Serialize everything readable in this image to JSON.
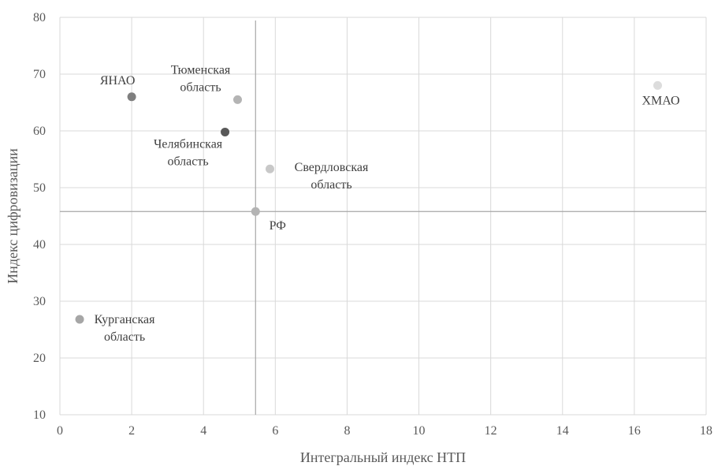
{
  "chart_data": {
    "type": "scatter",
    "title": "",
    "xlabel": "Интегральный индекс НТП",
    "ylabel": "Индекс цифровизации",
    "xlim": [
      0,
      18
    ],
    "ylim": [
      10,
      80
    ],
    "x_ticks": [
      0,
      2,
      4,
      6,
      8,
      10,
      12,
      14,
      16,
      18
    ],
    "y_ticks": [
      10,
      20,
      30,
      40,
      50,
      60,
      70,
      80
    ],
    "grid": true,
    "legend": "none",
    "reference_lines": {
      "x": 5.45,
      "y": 45.8
    },
    "points": [
      {
        "label": [
          "ЯНАО"
        ],
        "x": 2.0,
        "y": 66.0,
        "color": "#7f7f7f"
      },
      {
        "label": [
          "Тюменская",
          "область"
        ],
        "x": 4.95,
        "y": 65.5,
        "color": "#b4b4b4"
      },
      {
        "label": [
          "Челябинская",
          "область"
        ],
        "x": 4.6,
        "y": 59.8,
        "color": "#595959"
      },
      {
        "label": [
          "Свердловская",
          "область"
        ],
        "x": 5.85,
        "y": 53.3,
        "color": "#c8c8c8"
      },
      {
        "label": [
          "РФ"
        ],
        "x": 5.45,
        "y": 45.8,
        "color": "#b4b4b4"
      },
      {
        "label": [
          "Курганская",
          "область"
        ],
        "x": 0.55,
        "y": 26.8,
        "color": "#a6a6a6"
      },
      {
        "label": [
          "ХМАО"
        ],
        "x": 16.65,
        "y": 68.0,
        "color": "#dcdcdc"
      }
    ]
  }
}
